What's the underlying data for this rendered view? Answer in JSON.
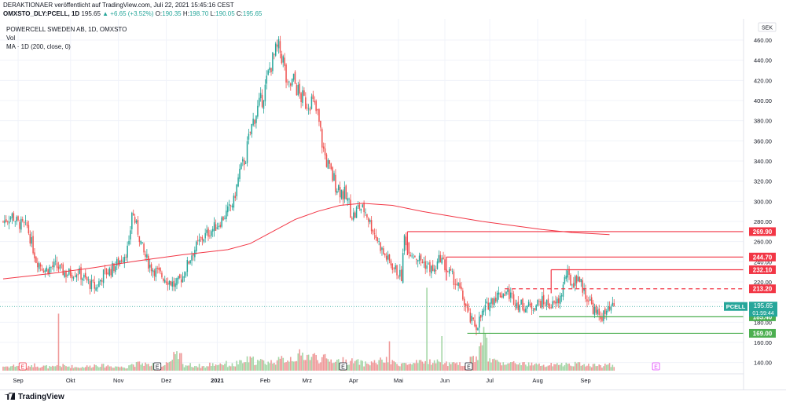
{
  "header": {
    "line1": "DERAKTIONAER veröffentlicht auf TradingView.com, Juli 22, 2021 15:45:16 CEST",
    "symbol": "OMXSTO_DLY:PCELL, 1D",
    "last": "195.65",
    "change": "▲ +6.65 (+3.52%)",
    "ohlc_o_label": "O:",
    "ohlc_o": "190.35",
    "ohlc_h_label": "H:",
    "ohlc_h": "198.70",
    "ohlc_l_label": "L:",
    "ohlc_l": "190.05",
    "ohlc_c_label": "C:",
    "ohlc_c": "195.65"
  },
  "legend": {
    "title": "POWERCELL SWEDEN AB, 1D, OMXSTO",
    "vol": "Vol",
    "ma": "MA · 1D (200, close, 0)"
  },
  "footer": {
    "brand": "TradingView"
  },
  "colors": {
    "up": "#26a69a",
    "down": "#ef5350",
    "ma": "#f23645",
    "resistance": "#f23645",
    "support": "#4caf50"
  },
  "chart_data": {
    "type": "candlestick",
    "title": "POWERCELL SWEDEN AB, 1D, OMXSTO",
    "currency": "SEK",
    "y_ticks": [
      140,
      160,
      180,
      200,
      220,
      240,
      260,
      280,
      300,
      320,
      340,
      360,
      380,
      400,
      420,
      440,
      460
    ],
    "ylim": [
      130,
      465
    ],
    "x_labels": [
      "Sep",
      "Okt",
      "Nov",
      "Dez",
      "2021",
      "Feb",
      "Mrz",
      "Apr",
      "Mai",
      "Jun",
      "Jul",
      "Aug",
      "Sep"
    ],
    "price_path": [
      [
        0,
        280
      ],
      [
        6,
        286
      ],
      [
        10,
        278
      ],
      [
        16,
        275
      ],
      [
        22,
        242
      ],
      [
        28,
        232
      ],
      [
        35,
        236
      ],
      [
        42,
        228
      ],
      [
        50,
        230
      ],
      [
        55,
        222
      ],
      [
        58,
        218
      ],
      [
        62,
        214
      ],
      [
        67,
        228
      ],
      [
        72,
        232
      ],
      [
        76,
        238
      ],
      [
        80,
        245
      ],
      [
        84,
        255
      ],
      [
        86,
        290
      ],
      [
        90,
        270
      ],
      [
        94,
        248
      ],
      [
        98,
        236
      ],
      [
        104,
        228
      ],
      [
        110,
        222
      ],
      [
        115,
        216
      ],
      [
        120,
        226
      ],
      [
        126,
        248
      ],
      [
        132,
        262
      ],
      [
        138,
        270
      ],
      [
        144,
        278
      ],
      [
        150,
        290
      ],
      [
        154,
        300
      ],
      [
        158,
        330
      ],
      [
        162,
        345
      ],
      [
        165,
        368
      ],
      [
        168,
        385
      ],
      [
        172,
        398
      ],
      [
        175,
        412
      ],
      [
        178,
        432
      ],
      [
        182,
        448
      ],
      [
        184,
        452
      ],
      [
        187,
        440
      ],
      [
        190,
        410
      ],
      [
        194,
        420
      ],
      [
        198,
        405
      ],
      [
        202,
        398
      ],
      [
        206,
        400
      ],
      [
        210,
        385
      ],
      [
        214,
        350
      ],
      [
        218,
        330
      ],
      [
        222,
        318
      ],
      [
        226,
        310
      ],
      [
        230,
        300
      ],
      [
        234,
        285
      ],
      [
        238,
        295
      ],
      [
        242,
        290
      ],
      [
        246,
        275
      ],
      [
        250,
        262
      ],
      [
        254,
        248
      ],
      [
        258,
        240
      ],
      [
        262,
        232
      ],
      [
        266,
        225
      ],
      [
        268,
        265
      ],
      [
        272,
        250
      ],
      [
        276,
        245
      ],
      [
        280,
        240
      ],
      [
        284,
        235
      ],
      [
        288,
        230
      ],
      [
        292,
        245
      ],
      [
        296,
        232
      ],
      [
        300,
        225
      ],
      [
        304,
        215
      ],
      [
        308,
        200
      ],
      [
        312,
        182
      ],
      [
        316,
        176
      ],
      [
        320,
        188
      ],
      [
        324,
        198
      ],
      [
        328,
        205
      ],
      [
        332,
        208
      ],
      [
        336,
        210
      ],
      [
        340,
        205
      ],
      [
        344,
        198
      ],
      [
        348,
        196
      ],
      [
        352,
        195
      ],
      [
        356,
        198
      ],
      [
        360,
        200
      ],
      [
        364,
        198
      ],
      [
        368,
        196
      ],
      [
        372,
        204
      ],
      [
        376,
        228
      ],
      [
        380,
        218
      ],
      [
        384,
        226
      ],
      [
        388,
        210
      ],
      [
        392,
        200
      ],
      [
        396,
        188
      ],
      [
        400,
        186
      ],
      [
        404,
        190
      ],
      [
        408,
        195.65
      ]
    ],
    "ma200_points": [
      [
        0,
        223
      ],
      [
        30,
        228
      ],
      [
        60,
        234
      ],
      [
        90,
        241
      ],
      [
        120,
        247
      ],
      [
        150,
        252
      ],
      [
        165,
        258
      ],
      [
        180,
        270
      ],
      [
        195,
        282
      ],
      [
        210,
        290
      ],
      [
        225,
        296
      ],
      [
        240,
        298
      ],
      [
        260,
        296
      ],
      [
        280,
        290
      ],
      [
        300,
        285
      ],
      [
        320,
        280
      ],
      [
        340,
        276
      ],
      [
        360,
        272
      ],
      [
        380,
        269
      ],
      [
        405,
        267
      ]
    ],
    "volume_profile": [
      0.6,
      0.7,
      0.5,
      0.8,
      0.6,
      0.5,
      0.7,
      0.6,
      0.5,
      0.6,
      0.8,
      0.7,
      0.6,
      0.5,
      0.9,
      1.0,
      0.8,
      0.7,
      1.2,
      2.0,
      0.8,
      0.7,
      0.6,
      0.9,
      1.0,
      0.8,
      1.1,
      1.5,
      1.3,
      1.2,
      1.4,
      1.6,
      1.8,
      2.2,
      2.0,
      1.7,
      1.5,
      1.4,
      1.3,
      1.2,
      1.0,
      1.2,
      1.4,
      1.1,
      1.0,
      0.9,
      1.1,
      1.3,
      1.2,
      1.0,
      0.9,
      1.0,
      1.8,
      4.8,
      1.5,
      1.2,
      1.0,
      1.1,
      0.9,
      0.8,
      0.7,
      0.8,
      0.9,
      1.0,
      0.9,
      0.8,
      0.7,
      0.8,
      0.7,
      0.6,
      0.7,
      0.8,
      0.9,
      0.8,
      0.7,
      0.8,
      0.7,
      0.6,
      0.7,
      0.8
    ],
    "volume_spike_days": [
      [
        37,
        3.3
      ],
      [
        283,
        4.8
      ],
      [
        293,
        2.0
      ],
      [
        258,
        1.7
      ]
    ],
    "levels": [
      {
        "label": "269.90",
        "value": 269.9,
        "color": "#f23645",
        "style": "solid",
        "start": 270
      },
      {
        "label": "244.70",
        "value": 244.7,
        "color": "#f23645",
        "style": "solid",
        "start": 296
      },
      {
        "label": "232.10",
        "value": 232.1,
        "color": "#f23645",
        "style": "solid",
        "start": 366
      },
      {
        "label": "213.20",
        "value": 213.2,
        "color": "#f23645",
        "style": "dashed",
        "start": 335
      },
      {
        "label": "185.40",
        "value": 185.4,
        "color": "#4caf50",
        "style": "solid",
        "start": 358
      },
      {
        "label": "169.00",
        "value": 169.0,
        "color": "#4caf50",
        "style": "solid",
        "start": 310
      }
    ],
    "price_tag": {
      "symbol": "PCELL",
      "price": "195.65",
      "countdown": "01:59:44"
    },
    "event_markers": [
      {
        "label": "E",
        "day": 13,
        "color": "#f23645"
      },
      {
        "label": "E",
        "day": 103,
        "color": "#131722"
      },
      {
        "label": "E",
        "day": 227,
        "color": "#131722"
      },
      {
        "label": "E",
        "day": 311,
        "color": "#131722"
      },
      {
        "label": "E",
        "day": 436,
        "color": "#e040fb"
      }
    ]
  }
}
